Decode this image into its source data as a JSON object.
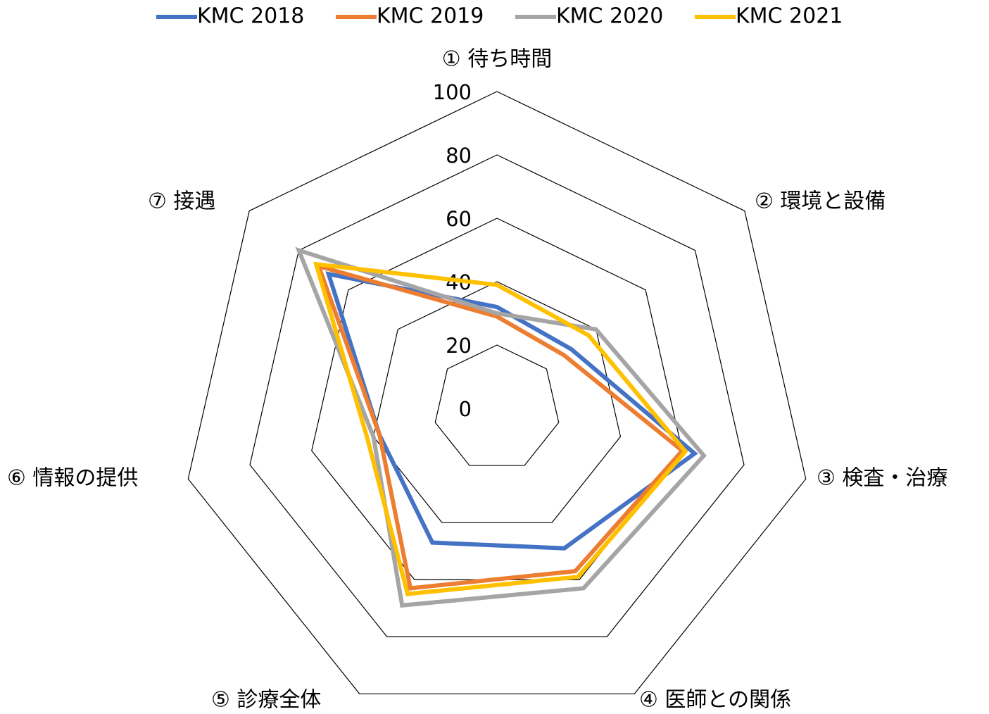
{
  "chart_data": {
    "type": "radar",
    "categories": [
      "① 待ち時間",
      "② 環境と設備",
      "③ 検査・治療",
      "④ 医師との関係",
      "⑤ 診療全体",
      "⑥ 情報の提供",
      "⑦ 接遇"
    ],
    "series": [
      {
        "name": "KMC 2018",
        "color": "#4472c4",
        "values": [
          32,
          30,
          64,
          49,
          47,
          38,
          68
        ]
      },
      {
        "name": "KMC 2019",
        "color": "#ed7d31",
        "values": [
          29,
          27,
          60,
          57,
          63,
          38,
          72
        ]
      },
      {
        "name": "KMC 2020",
        "color": "#a5a5a5",
        "values": [
          30,
          40,
          67,
          63,
          69,
          40,
          80
        ]
      },
      {
        "name": "KMC 2021",
        "color": "#ffc000",
        "values": [
          39,
          37,
          61,
          59,
          65,
          42,
          73
        ]
      }
    ],
    "ylim": [
      0,
      100
    ],
    "yticks": [
      0,
      20,
      40,
      60,
      80,
      100
    ],
    "grid": true,
    "legend": "top"
  }
}
